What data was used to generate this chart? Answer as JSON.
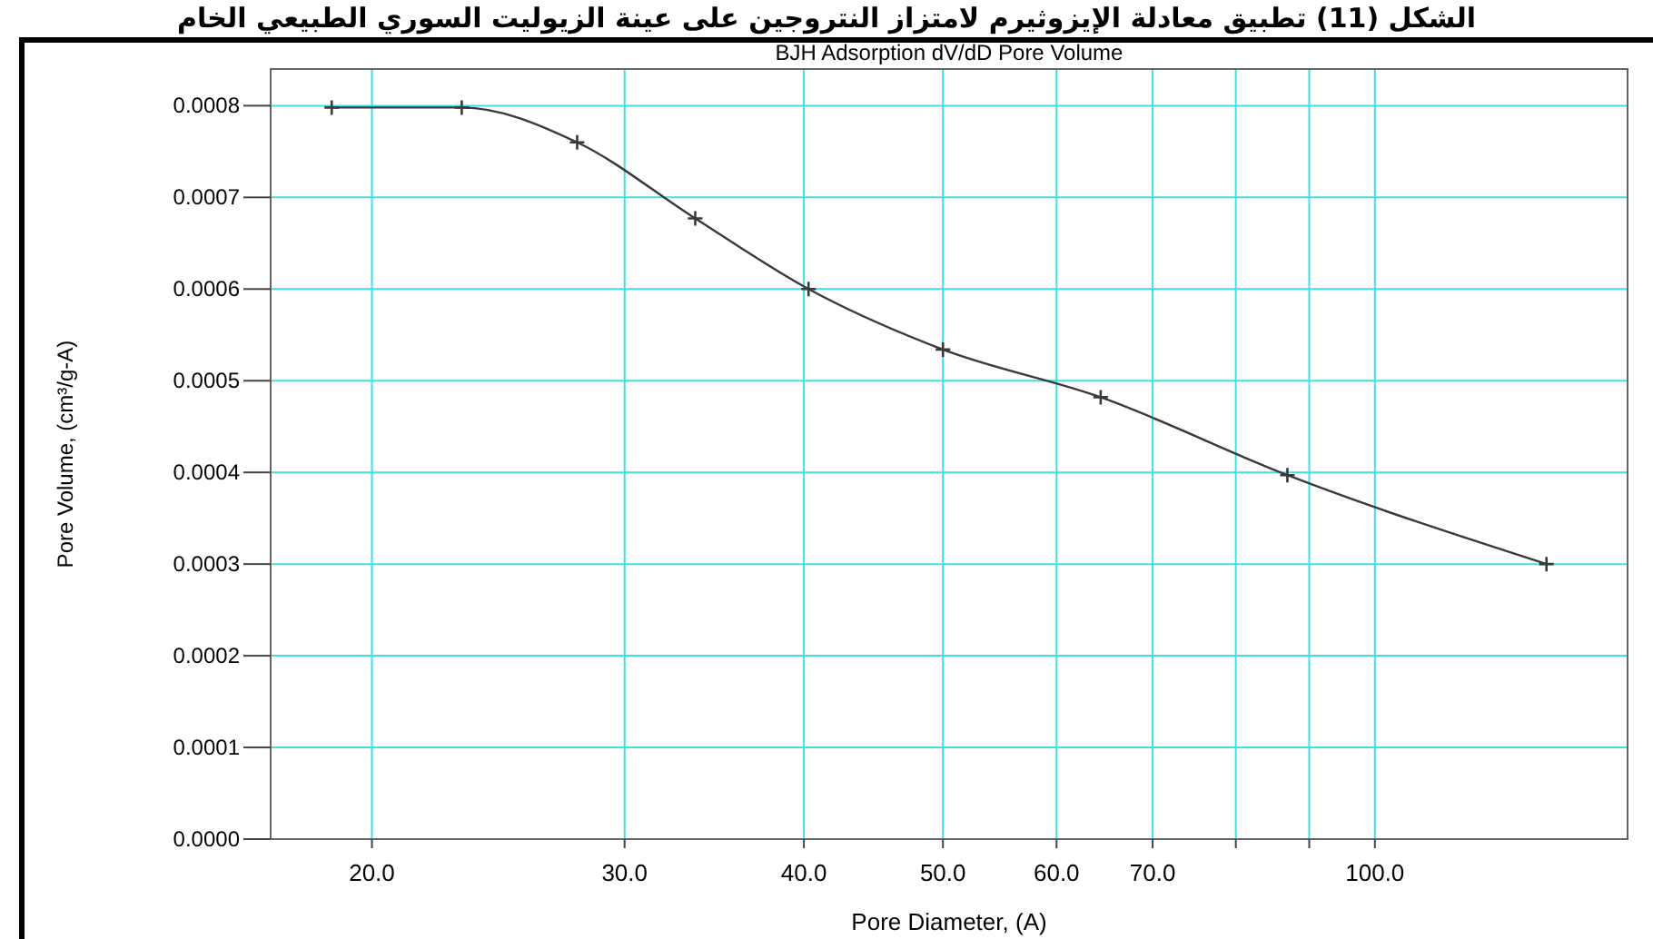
{
  "chart_data": {
    "type": "line",
    "title": "BJH Adsorption dV/dD Pore Volume",
    "xlabel": "Pore Diameter, (A)",
    "ylabel": "Pore Volume, (cm³/g-A)",
    "annotations": [
      "الشكل (11) تطبيق معادلة الإيزوثيرم لامتزاز النتروجين على عينة الزيوليت السوري الطبيعي الخام"
    ],
    "log": "x",
    "grid": true,
    "marker": "cross",
    "line_style": "solid",
    "xlim": [
      17,
      150
    ],
    "ylim": [
      0,
      0.00084
    ],
    "xticks": [
      {
        "value": 20,
        "label": "20.0"
      },
      {
        "value": 30,
        "label": "30.0"
      },
      {
        "value": 40,
        "label": "40.0"
      },
      {
        "value": 50,
        "label": "50.0"
      },
      {
        "value": 60,
        "label": "60.0"
      },
      {
        "value": 70,
        "label": "70.0"
      },
      {
        "value": 80,
        "label": null
      },
      {
        "value": 90,
        "label": null
      },
      {
        "value": 100,
        "label": "100.0"
      }
    ],
    "yticks": [
      {
        "value": 0,
        "label": "0.0000"
      },
      {
        "value": 0.0001,
        "label": "0.0001"
      },
      {
        "value": 0.0002,
        "label": "0.0002"
      },
      {
        "value": 0.0003,
        "label": "0.0003"
      },
      {
        "value": 0.0004,
        "label": "0.0004"
      },
      {
        "value": 0.0005,
        "label": "0.0005"
      },
      {
        "value": 0.0006,
        "label": "0.0006"
      },
      {
        "value": 0.0007,
        "label": "0.0007"
      },
      {
        "value": 0.0008,
        "label": "0.0008"
      }
    ],
    "series": [
      {
        "color": "#3a3a3a",
        "x": [
          18.75,
          23.1,
          27.8,
          33.6,
          40.3,
          50.0,
          64.4,
          86.9,
          131.7
        ],
        "values": [
          0.000798,
          0.000798,
          0.00076,
          0.000677,
          0.0006,
          0.000534,
          0.000482,
          0.000397,
          0.0003
        ]
      }
    ]
  }
}
